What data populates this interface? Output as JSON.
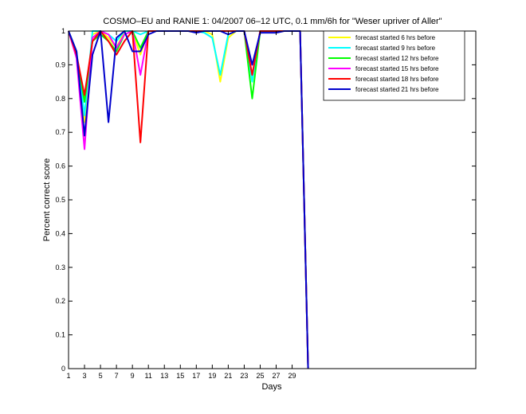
{
  "chart_data": {
    "type": "line",
    "title": "COSMO–EU and RANIE 1: 04/2007 06–12 UTC, 0.1 mm/6h for \"Weser upriver of Aller\"",
    "xlabel": "Days",
    "ylabel": "Percent correct score",
    "xlim": [
      1,
      52
    ],
    "ylim": [
      0,
      1
    ],
    "xticks": [
      1,
      3,
      5,
      7,
      9,
      11,
      13,
      15,
      17,
      19,
      21,
      23,
      25,
      27,
      29
    ],
    "xtick_labels": [
      "1",
      "3",
      "5",
      "7",
      "9",
      "11",
      "13",
      "15",
      "17",
      "19",
      "21",
      "23",
      "25",
      "27",
      "29"
    ],
    "yticks": [
      0,
      0.1,
      0.2,
      0.3,
      0.4,
      0.5,
      0.6,
      0.7,
      0.8,
      0.9,
      1
    ],
    "ytick_labels": [
      "0",
      "0.1",
      "0.2",
      "0.3",
      "0.4",
      "0.5",
      "0.6",
      "0.7",
      "0.8",
      "0.9",
      "1"
    ],
    "x": [
      1,
      2,
      3,
      4,
      5,
      6,
      7,
      8,
      9,
      10,
      11,
      12,
      13,
      14,
      15,
      16,
      17,
      18,
      19,
      20,
      21,
      22,
      23,
      24,
      25,
      26,
      27,
      28,
      29,
      30,
      31
    ],
    "grid": false,
    "legend_position": "top-right",
    "series": [
      {
        "name": "forecast started 6 hrs before",
        "color": "#ffff00",
        "values": [
          1,
          0.94,
          0.73,
          0.99,
          1,
          0.98,
          0.95,
          1,
          1,
          0.93,
          1,
          1,
          1,
          1,
          1,
          1,
          1,
          1,
          0.99,
          0.85,
          0.98,
          1,
          1,
          0.86,
          1,
          1,
          1,
          1,
          1,
          1,
          0
        ]
      },
      {
        "name": "forecast started 9 hrs before",
        "color": "#00ffff",
        "values": [
          1,
          0.94,
          0.75,
          1,
          1,
          0.99,
          0.97,
          1,
          1,
          0.99,
          1,
          1,
          1,
          1,
          1,
          1,
          1,
          0.995,
          0.98,
          0.87,
          0.99,
          1,
          1,
          0.85,
          1,
          1,
          1,
          1,
          1,
          1,
          0
        ]
      },
      {
        "name": "forecast started 12 hrs before",
        "color": "#00ff00",
        "values": [
          1,
          0.93,
          0.79,
          0.97,
          0.99,
          0.97,
          0.94,
          0.99,
          1,
          0.95,
          1,
          1,
          1,
          1,
          1,
          1,
          1,
          1,
          1,
          1,
          1,
          1,
          1,
          0.8,
          1,
          1,
          1,
          1,
          1,
          1,
          0
        ]
      },
      {
        "name": "forecast started 15 hrs before",
        "color": "#ff00ff",
        "values": [
          1,
          0.92,
          0.65,
          0.98,
          1,
          0.99,
          0.95,
          0.99,
          1,
          0.87,
          1,
          1,
          1,
          1,
          1,
          1,
          1,
          1,
          1,
          1,
          1,
          1,
          1,
          0.87,
          1,
          1,
          1,
          1,
          1,
          1,
          0
        ]
      },
      {
        "name": "forecast started 18 hrs before",
        "color": "#ff0000",
        "values": [
          1,
          0.93,
          0.81,
          0.97,
          1,
          0.97,
          0.93,
          0.97,
          1,
          0.67,
          1,
          1,
          1,
          1,
          1,
          1,
          1,
          1,
          1,
          1,
          1,
          1,
          1,
          0.87,
          1,
          1,
          1,
          1,
          1,
          1,
          0
        ]
      },
      {
        "name": "forecast started 21 hrs before",
        "color": "#0000cc",
        "values": [
          1,
          0.94,
          0.69,
          0.93,
          1,
          0.73,
          0.98,
          1,
          0.94,
          0.94,
          0.99,
          1,
          1,
          1,
          1,
          1,
          0.995,
          1,
          1,
          1,
          0.99,
          1,
          1,
          0.9,
          0.995,
          0.995,
          0.995,
          1,
          1,
          1,
          0
        ]
      }
    ]
  }
}
